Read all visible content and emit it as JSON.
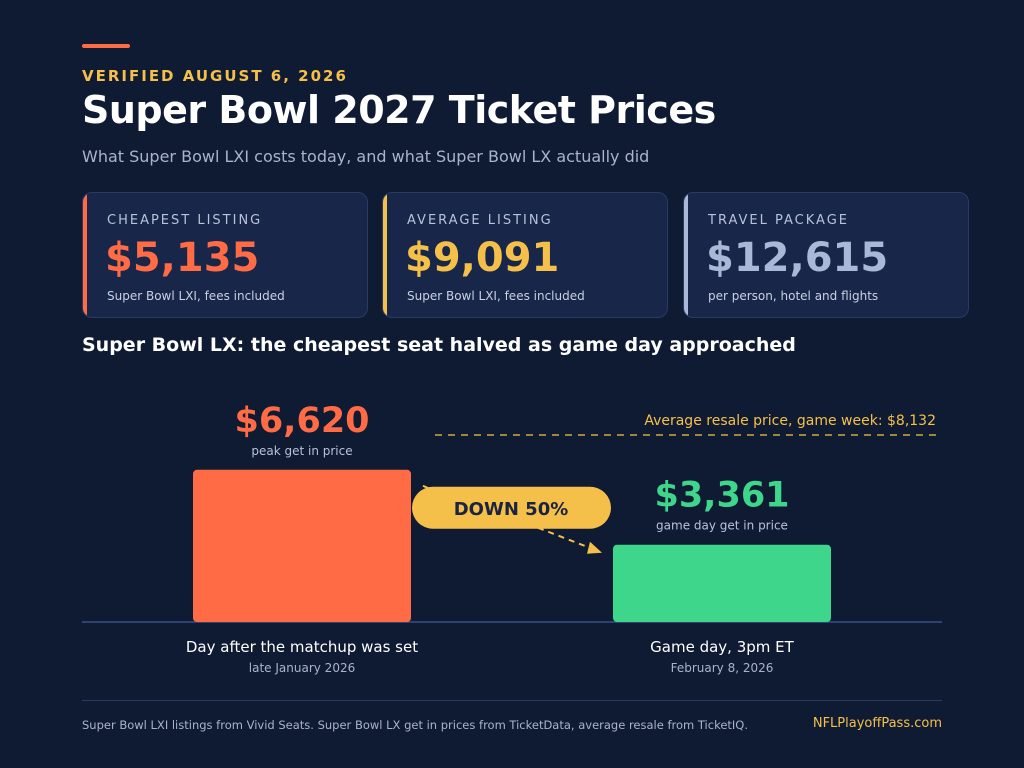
{
  "header": {
    "eyebrow": "VERIFIED AUGUST 6, 2026",
    "title": "Super Bowl 2027 Ticket Prices",
    "subtitle": "What Super Bowl LXI costs today, and what Super Bowl LX actually did"
  },
  "cards": [
    {
      "label": "CHEAPEST LISTING",
      "value": "$5,135",
      "note": "Super Bowl LXI, fees included",
      "color": "#ff6b45"
    },
    {
      "label": "AVERAGE LISTING",
      "value": "$9,091",
      "note": "Super Bowl LXI, fees included",
      "color": "#f5c04a"
    },
    {
      "label": "TRAVEL PACKAGE",
      "value": "$12,615",
      "note": "per person, hotel and flights",
      "color": "#a9b8d6"
    }
  ],
  "chart_data": {
    "type": "bar",
    "title": "Super Bowl LX: the cheapest seat halved as game day approached",
    "categories": [
      "Day after the matchup was set",
      "Game day, 3pm ET"
    ],
    "category_sublabels": [
      "late January 2026",
      "February 8, 2026"
    ],
    "values": [
      6620,
      3361
    ],
    "value_labels": [
      "$6,620",
      "$3,361"
    ],
    "value_captions": [
      "peak get in price",
      "game day get in price"
    ],
    "bar_colors": [
      "#ff6b45",
      "#3ed68a"
    ],
    "reference_line": {
      "value": 8132,
      "label": "Average resale price, game week: $8,132",
      "color": "#f5c04a"
    },
    "change_badge": "DOWN 50%",
    "grid": false
  },
  "footer": {
    "source": "Super Bowl LXI listings from Vivid Seats. Super Bowl LX get in prices from TicketData, average resale from TicketIQ.",
    "brand": "NFLPlayoffPass.com"
  }
}
